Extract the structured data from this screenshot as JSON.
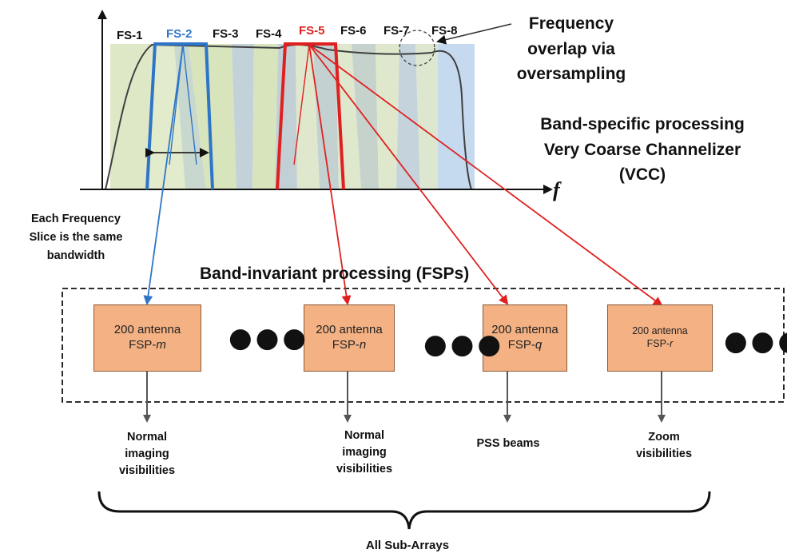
{
  "spectrum": {
    "slices": [
      "FS-1",
      "FS-2",
      "FS-3",
      "FS-4",
      "FS-5",
      "FS-6",
      "FS-7",
      "FS-8"
    ],
    "axis_label": "f",
    "overlap_note": [
      "Frequency",
      "overlap via",
      "oversampling"
    ],
    "band_specific_title": [
      "Band-specific processing",
      "Very Coarse Channelizer",
      "(VCC)"
    ],
    "same_bandwidth_note": [
      "Each Frequency",
      "Slice is the same",
      "bandwidth"
    ]
  },
  "fsp": {
    "title": "Band-invariant processing (FSPs)",
    "boxes": [
      {
        "line1": "200 antenna",
        "prefix": "FSP-",
        "id": "m",
        "output": [
          "Normal",
          "imaging",
          "visibilities"
        ]
      },
      {
        "line1": "200 antenna",
        "prefix": "FSP-",
        "id": "n",
        "output": [
          "Normal",
          "imaging",
          "visibilities"
        ]
      },
      {
        "line1": "200 antenna",
        "prefix": "FSP-",
        "id": "q",
        "output": [
          "PSS beams"
        ]
      },
      {
        "line1": "200 antenna",
        "prefix": "FSP-",
        "id": "r",
        "output": [
          "Zoom",
          "visibilities"
        ]
      }
    ],
    "ellipsis": "●●●",
    "bottom_label": "All Sub-Arrays"
  },
  "colors": {
    "fs2": "#2e75c8",
    "fs5": "#e02020",
    "box_fill": "#f4b183",
    "slice_green": "#d8e4bc",
    "slice_blue": "#c5d9ef"
  }
}
